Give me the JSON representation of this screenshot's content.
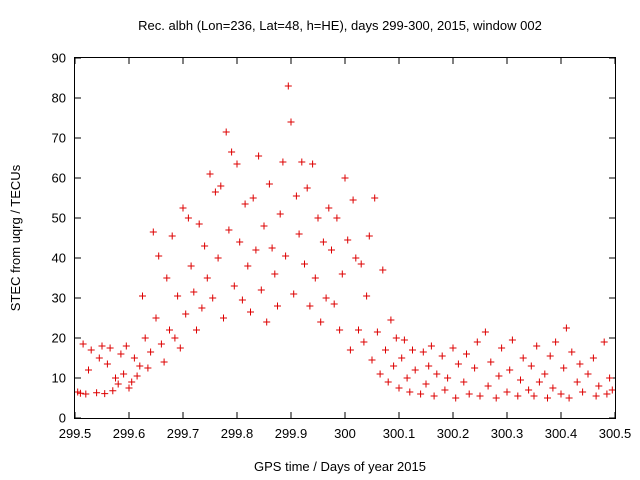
{
  "chart_data": {
    "type": "scatter",
    "title": "Rec. albh (Lon=236, Lat=48, h=HE), days 299-300, 2015, window 002",
    "xlabel": "GPS time / Days of year 2015",
    "ylabel": "STEC from uqrg / TECUs",
    "xlim": [
      299.5,
      300.5
    ],
    "ylim": [
      0,
      90
    ],
    "x_ticks": [
      "299.5",
      "299.6",
      "299.7",
      "299.8",
      "299.9",
      "300",
      "300.1",
      "300.2",
      "300.3",
      "300.4",
      "300.5"
    ],
    "y_ticks": [
      "0",
      "10",
      "20",
      "30",
      "40",
      "50",
      "60",
      "70",
      "80",
      "90"
    ],
    "marker": "+",
    "color": "#dd0000",
    "grid": false,
    "legend": "none",
    "points": [
      [
        299.505,
        6.5
      ],
      [
        299.51,
        6.2
      ],
      [
        299.515,
        18.5
      ],
      [
        299.52,
        6.0
      ],
      [
        299.525,
        12.0
      ],
      [
        299.53,
        17.0
      ],
      [
        299.54,
        6.3
      ],
      [
        299.545,
        15.0
      ],
      [
        299.55,
        18.0
      ],
      [
        299.555,
        6.1
      ],
      [
        299.56,
        13.5
      ],
      [
        299.565,
        17.5
      ],
      [
        299.57,
        6.8
      ],
      [
        299.575,
        10.0
      ],
      [
        299.58,
        8.5
      ],
      [
        299.585,
        16.0
      ],
      [
        299.59,
        11.0
      ],
      [
        299.595,
        18.0
      ],
      [
        299.6,
        7.5
      ],
      [
        299.605,
        9.0
      ],
      [
        299.61,
        15.0
      ],
      [
        299.615,
        10.5
      ],
      [
        299.62,
        13.0
      ],
      [
        299.625,
        30.5
      ],
      [
        299.63,
        20.0
      ],
      [
        299.635,
        12.5
      ],
      [
        299.64,
        16.5
      ],
      [
        299.645,
        46.5
      ],
      [
        299.65,
        25.0
      ],
      [
        299.655,
        40.5
      ],
      [
        299.66,
        18.5
      ],
      [
        299.665,
        14.0
      ],
      [
        299.67,
        35.0
      ],
      [
        299.675,
        22.0
      ],
      [
        299.68,
        45.5
      ],
      [
        299.685,
        20.0
      ],
      [
        299.69,
        30.5
      ],
      [
        299.695,
        17.5
      ],
      [
        299.7,
        52.5
      ],
      [
        299.705,
        26.0
      ],
      [
        299.71,
        50.0
      ],
      [
        299.715,
        38.0
      ],
      [
        299.72,
        31.5
      ],
      [
        299.725,
        22.0
      ],
      [
        299.73,
        48.5
      ],
      [
        299.735,
        27.5
      ],
      [
        299.74,
        43.0
      ],
      [
        299.745,
        35.0
      ],
      [
        299.75,
        61.0
      ],
      [
        299.755,
        30.0
      ],
      [
        299.76,
        56.5
      ],
      [
        299.765,
        40.0
      ],
      [
        299.77,
        58.0
      ],
      [
        299.775,
        25.0
      ],
      [
        299.78,
        71.5
      ],
      [
        299.785,
        47.0
      ],
      [
        299.79,
        66.5
      ],
      [
        299.795,
        33.0
      ],
      [
        299.8,
        63.5
      ],
      [
        299.805,
        44.0
      ],
      [
        299.81,
        29.5
      ],
      [
        299.815,
        53.5
      ],
      [
        299.82,
        38.0
      ],
      [
        299.825,
        26.5
      ],
      [
        299.83,
        55.0
      ],
      [
        299.835,
        42.0
      ],
      [
        299.84,
        65.5
      ],
      [
        299.845,
        32.0
      ],
      [
        299.85,
        48.0
      ],
      [
        299.855,
        24.0
      ],
      [
        299.86,
        58.5
      ],
      [
        299.865,
        42.5
      ],
      [
        299.87,
        36.0
      ],
      [
        299.875,
        28.0
      ],
      [
        299.88,
        51.0
      ],
      [
        299.885,
        64.0
      ],
      [
        299.89,
        40.5
      ],
      [
        299.895,
        83.0
      ],
      [
        299.9,
        74.0
      ],
      [
        299.905,
        31.0
      ],
      [
        299.91,
        55.5
      ],
      [
        299.915,
        46.0
      ],
      [
        299.92,
        64.0
      ],
      [
        299.925,
        38.5
      ],
      [
        299.93,
        57.5
      ],
      [
        299.935,
        28.0
      ],
      [
        299.94,
        63.5
      ],
      [
        299.945,
        35.0
      ],
      [
        299.95,
        50.0
      ],
      [
        299.955,
        24.0
      ],
      [
        299.96,
        44.0
      ],
      [
        299.965,
        30.0
      ],
      [
        299.97,
        52.5
      ],
      [
        299.975,
        42.0
      ],
      [
        299.98,
        28.5
      ],
      [
        299.985,
        50.0
      ],
      [
        299.99,
        22.0
      ],
      [
        299.995,
        36.0
      ],
      [
        300.0,
        60.0
      ],
      [
        300.005,
        44.5
      ],
      [
        300.01,
        17.0
      ],
      [
        300.015,
        54.5
      ],
      [
        300.02,
        40.0
      ],
      [
        300.025,
        22.0
      ],
      [
        300.03,
        38.5
      ],
      [
        300.035,
        19.0
      ],
      [
        300.04,
        30.5
      ],
      [
        300.045,
        45.5
      ],
      [
        300.05,
        14.5
      ],
      [
        300.055,
        55.0
      ],
      [
        300.06,
        21.5
      ],
      [
        300.065,
        11.0
      ],
      [
        300.07,
        37.0
      ],
      [
        300.075,
        17.0
      ],
      [
        300.08,
        9.0
      ],
      [
        300.085,
        24.5
      ],
      [
        300.09,
        13.0
      ],
      [
        300.095,
        20.0
      ],
      [
        300.1,
        7.5
      ],
      [
        300.105,
        15.0
      ],
      [
        300.11,
        19.5
      ],
      [
        300.115,
        10.0
      ],
      [
        300.12,
        6.5
      ],
      [
        300.125,
        17.0
      ],
      [
        300.13,
        12.0
      ],
      [
        300.14,
        6.0
      ],
      [
        300.145,
        16.5
      ],
      [
        300.15,
        8.5
      ],
      [
        300.155,
        13.0
      ],
      [
        300.16,
        18.0
      ],
      [
        300.165,
        5.5
      ],
      [
        300.17,
        11.0
      ],
      [
        300.18,
        15.5
      ],
      [
        300.185,
        7.0
      ],
      [
        300.19,
        10.0
      ],
      [
        300.2,
        17.5
      ],
      [
        300.205,
        5.0
      ],
      [
        300.21,
        13.5
      ],
      [
        300.22,
        9.0
      ],
      [
        300.225,
        16.0
      ],
      [
        300.23,
        6.0
      ],
      [
        300.24,
        12.5
      ],
      [
        300.245,
        19.0
      ],
      [
        300.25,
        5.5
      ],
      [
        300.26,
        21.5
      ],
      [
        300.265,
        8.0
      ],
      [
        300.27,
        14.0
      ],
      [
        300.28,
        5.0
      ],
      [
        300.285,
        10.5
      ],
      [
        300.29,
        17.5
      ],
      [
        300.3,
        6.5
      ],
      [
        300.305,
        12.0
      ],
      [
        300.31,
        19.5
      ],
      [
        300.32,
        5.5
      ],
      [
        300.325,
        9.5
      ],
      [
        300.33,
        15.0
      ],
      [
        300.34,
        7.0
      ],
      [
        300.345,
        13.0
      ],
      [
        300.35,
        5.5
      ],
      [
        300.355,
        18.0
      ],
      [
        300.36,
        9.0
      ],
      [
        300.37,
        11.0
      ],
      [
        300.375,
        5.0
      ],
      [
        300.38,
        15.5
      ],
      [
        300.385,
        7.5
      ],
      [
        300.39,
        19.0
      ],
      [
        300.4,
        6.0
      ],
      [
        300.405,
        12.5
      ],
      [
        300.41,
        22.5
      ],
      [
        300.415,
        5.0
      ],
      [
        300.42,
        16.5
      ],
      [
        300.43,
        9.0
      ],
      [
        300.435,
        13.5
      ],
      [
        300.44,
        6.5
      ],
      [
        300.45,
        11.0
      ],
      [
        300.46,
        15.0
      ],
      [
        300.465,
        5.5
      ],
      [
        300.47,
        8.0
      ],
      [
        300.48,
        19.0
      ],
      [
        300.485,
        6.0
      ],
      [
        300.49,
        10.0
      ],
      [
        300.495,
        7.0
      ]
    ]
  }
}
